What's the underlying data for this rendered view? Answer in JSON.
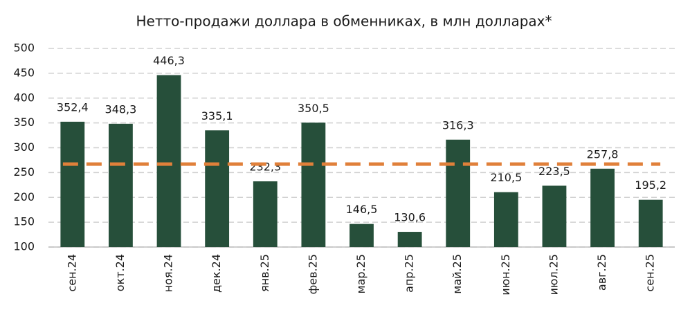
{
  "chart_data": {
    "type": "bar",
    "title": "Нетто-продажи доллара в обменниках, в млн долларах*",
    "categories": [
      "сен.24",
      "окт.24",
      "ноя.24",
      "дек.24",
      "янв.25",
      "фев.25",
      "мар.25",
      "апр.25",
      "май.25",
      "июн.25",
      "июл.25",
      "авг.25",
      "сен.25"
    ],
    "values": [
      352.4,
      348.3,
      446.3,
      335.1,
      232.3,
      350.5,
      146.5,
      130.6,
      316.3,
      210.5,
      223.5,
      257.8,
      195.2
    ],
    "value_labels": [
      "352,4",
      "348,3",
      "446,3",
      "335,1",
      "232,3",
      "350,5",
      "146,5",
      "130,6",
      "316,3",
      "210,5",
      "223,5",
      "257,8",
      "195,2"
    ],
    "color": "#264f3a",
    "ylim": [
      100,
      500
    ],
    "yticks": [
      100,
      150,
      200,
      250,
      300,
      350,
      400,
      450,
      500
    ],
    "grid": true,
    "reference_line": {
      "value": 267,
      "color": "#e0803a",
      "dashed": true
    }
  }
}
